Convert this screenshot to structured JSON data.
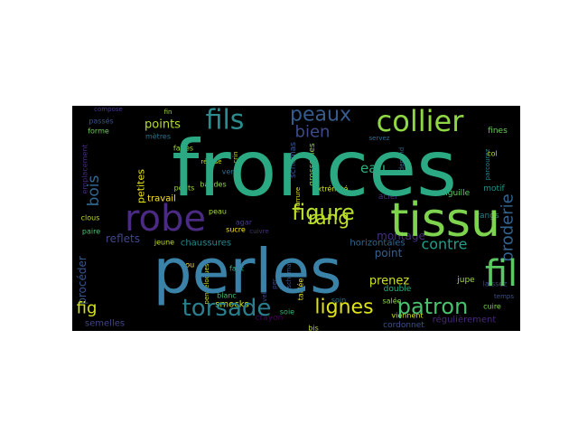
{
  "wordcloud": {
    "background": "#000000",
    "words": [
      {
        "text": "fronces",
        "color": "#2aa982"
      },
      {
        "text": "perles",
        "color": "#3b82a8"
      },
      {
        "text": "tissu",
        "color": "#7ed34f"
      },
      {
        "text": "robe",
        "color": "#4b2a83"
      },
      {
        "text": "fil",
        "color": "#5cc863"
      },
      {
        "text": "collier",
        "color": "#8fd744"
      },
      {
        "text": "fils",
        "color": "#2c8b8c"
      },
      {
        "text": "torsade",
        "color": "#2a7e8e"
      },
      {
        "text": "patron",
        "color": "#4ac16d"
      },
      {
        "text": "figure",
        "color": "#b7de2a"
      },
      {
        "text": "peaux",
        "color": "#365c8d"
      },
      {
        "text": "lignes",
        "color": "#dde318"
      },
      {
        "text": "rang",
        "color": "#c4e02c"
      },
      {
        "text": "broderie",
        "color": "#33638d"
      },
      {
        "text": "bien",
        "color": "#3e4989"
      },
      {
        "text": "contre",
        "color": "#1f9e89"
      },
      {
        "text": "bois",
        "color": "#31688e"
      },
      {
        "text": "eau",
        "color": "#2db27d"
      },
      {
        "text": "fig",
        "color": "#d2e21b"
      },
      {
        "text": "points",
        "color": "#b5de2b"
      },
      {
        "text": "montage",
        "color": "#46307e"
      },
      {
        "text": "point",
        "color": "#34618d"
      },
      {
        "text": "prenez",
        "color": "#cde11d"
      },
      {
        "text": "reflets",
        "color": "#3f4788"
      },
      {
        "text": "procéder",
        "color": "#3a548c"
      },
      {
        "text": "petites",
        "color": "#e5e419"
      },
      {
        "text": "travail",
        "color": "#fde725"
      },
      {
        "text": "semelles",
        "color": "#414487"
      },
      {
        "text": "smocks",
        "color": "#c8e020"
      },
      {
        "text": "horizontales",
        "color": "#31688e"
      },
      {
        "text": "régulièrement",
        "color": "#482878"
      },
      {
        "text": "chaussures",
        "color": "#24868e"
      },
      {
        "text": "aiguille",
        "color": "#5ec962"
      },
      {
        "text": "grosseilles",
        "color": "#90d743"
      },
      {
        "text": "schémas",
        "color": "#38598c"
      },
      {
        "text": "jupe",
        "color": "#a0da39"
      },
      {
        "text": "cordonnet",
        "color": "#3b528b"
      },
      {
        "text": "rangs",
        "color": "#25838e"
      },
      {
        "text": "motif",
        "color": "#21918c"
      },
      {
        "text": "double",
        "color": "#29af7f"
      },
      {
        "text": "acier",
        "color": "#46327e"
      },
      {
        "text": "fines",
        "color": "#6ccd5a"
      },
      {
        "text": "crayon",
        "color": "#440154"
      },
      {
        "text": "emplacement",
        "color": "#472d7b"
      },
      {
        "text": "extrémité",
        "color": "#dae319"
      },
      {
        "text": "soin",
        "color": "#2e6e8e"
      },
      {
        "text": "cuire",
        "color": "#7fd34e"
      },
      {
        "text": "temps",
        "color": "#3b518b"
      },
      {
        "text": "bandes",
        "color": "#8bd646"
      },
      {
        "text": "petits",
        "color": "#a2da37"
      },
      {
        "text": "faites",
        "color": "#9dd93b"
      },
      {
        "text": "verre",
        "color": "#2f6b8e"
      },
      {
        "text": "agar",
        "color": "#443b84"
      },
      {
        "text": "jeune",
        "color": "#c0df25"
      },
      {
        "text": "blanc",
        "color": "#42be71"
      },
      {
        "text": "clous",
        "color": "#c2df23"
      },
      {
        "text": "paire",
        "color": "#4ac16d"
      },
      {
        "text": "bis",
        "color": "#bddf26"
      },
      {
        "text": "sucre",
        "color": "#f6e620"
      },
      {
        "text": "peau",
        "color": "#a5db36"
      },
      {
        "text": "faut",
        "color": "#35b779"
      },
      {
        "text": "cou",
        "color": "#fde725"
      },
      {
        "text": "soie",
        "color": "#38b977"
      },
      {
        "text": "taillée",
        "color": "#e2e418"
      },
      {
        "text": "fourrure",
        "color": "#e5e419"
      },
      {
        "text": "viennent",
        "color": "#d0e11c"
      },
      {
        "text": "laissez",
        "color": "#3e4a89"
      },
      {
        "text": "salée",
        "color": "#8bd646"
      },
      {
        "text": "col",
        "color": "#b8de29"
      },
      {
        "text": "depend",
        "color": "#31688e"
      },
      {
        "text": "mètres",
        "color": "#2c728e"
      },
      {
        "text": "forme",
        "color": "#6ece58"
      },
      {
        "text": "passés",
        "color": "#3b528b"
      },
      {
        "text": "fin",
        "color": "#9bd93c"
      },
      {
        "text": "compose",
        "color": "#453781"
      },
      {
        "text": "réalisé",
        "color": "#cde11d"
      },
      {
        "text": "crin",
        "color": "#c8e020"
      },
      {
        "text": "servez",
        "color": "#2e6d8e"
      },
      {
        "text": "pendeloques",
        "color": "#c5e021"
      },
      {
        "text": "cuivre",
        "color": "#46307e"
      },
      {
        "text": "velours",
        "color": "#3f4889"
      },
      {
        "text": "schéma",
        "color": "#38588c"
      },
      {
        "text": "per",
        "color": "#3f4788"
      },
      {
        "text": "parcourez",
        "color": "#24868e"
      }
    ]
  }
}
